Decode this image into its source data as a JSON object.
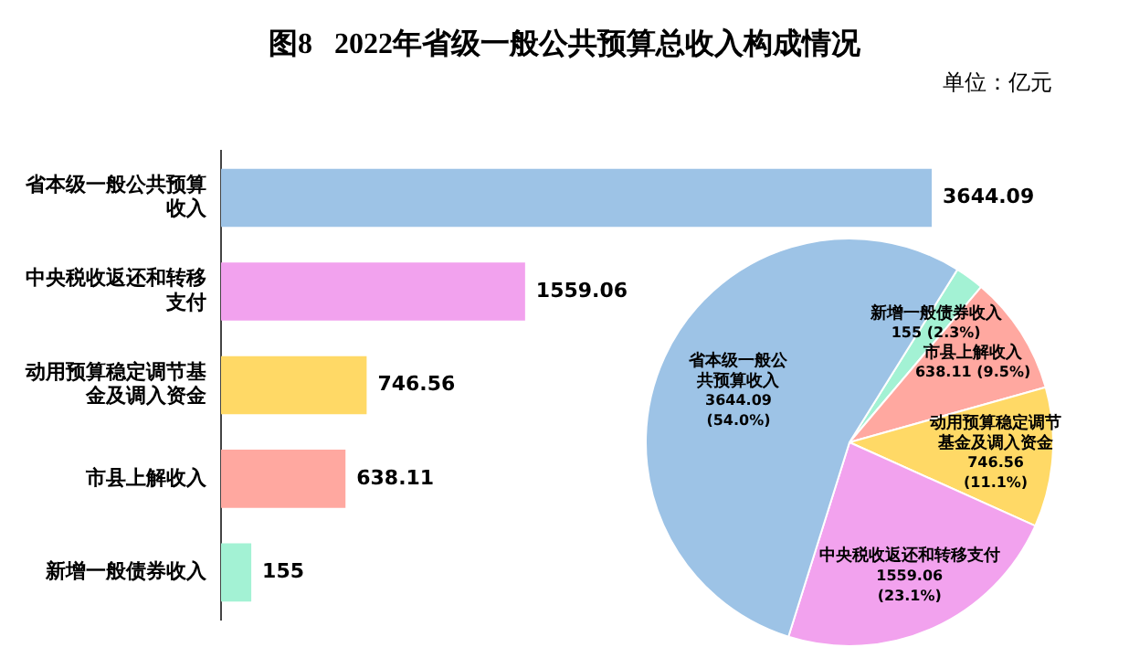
{
  "chart_data": [
    {
      "type": "bar",
      "orientation": "horizontal",
      "title": "图8   2022年省级一般公共预算总收入构成情况",
      "subtitle": "单位：亿元",
      "categories": [
        "省本级一般公共预算收入",
        "中央税收返还和转移支付",
        "动用预算稳定调节基金及调入资金",
        "市县上解收入",
        "新增一般债券收入"
      ],
      "values": [
        3644.09,
        1559.06,
        746.56,
        638.11,
        155
      ],
      "colors": [
        "#9dc3e6",
        "#f2a2ee",
        "#ffd966",
        "#ffa8a0",
        "#a3f2d4"
      ],
      "data_labels": true,
      "legend": false
    },
    {
      "type": "pie",
      "categories": [
        "新增一般债券收入",
        "市县上解收入",
        "动用预算稳定调节基金及调入资金",
        "中央税收返还和转移支付",
        "省本级一般公共预算收入"
      ],
      "values": [
        155,
        638.11,
        746.56,
        1559.06,
        3644.09
      ],
      "colors": [
        "#a3f2d4",
        "#ffa8a0",
        "#ffd966",
        "#f2a2ee",
        "#9dc3e6"
      ],
      "value_labels": [
        "155 (2.3%)",
        "638.11 (9.5%)",
        "746.56\n(11.1%)",
        "1559.06\n(23.1%)",
        "3644.09\n(54.0%)"
      ],
      "legend": false
    }
  ]
}
